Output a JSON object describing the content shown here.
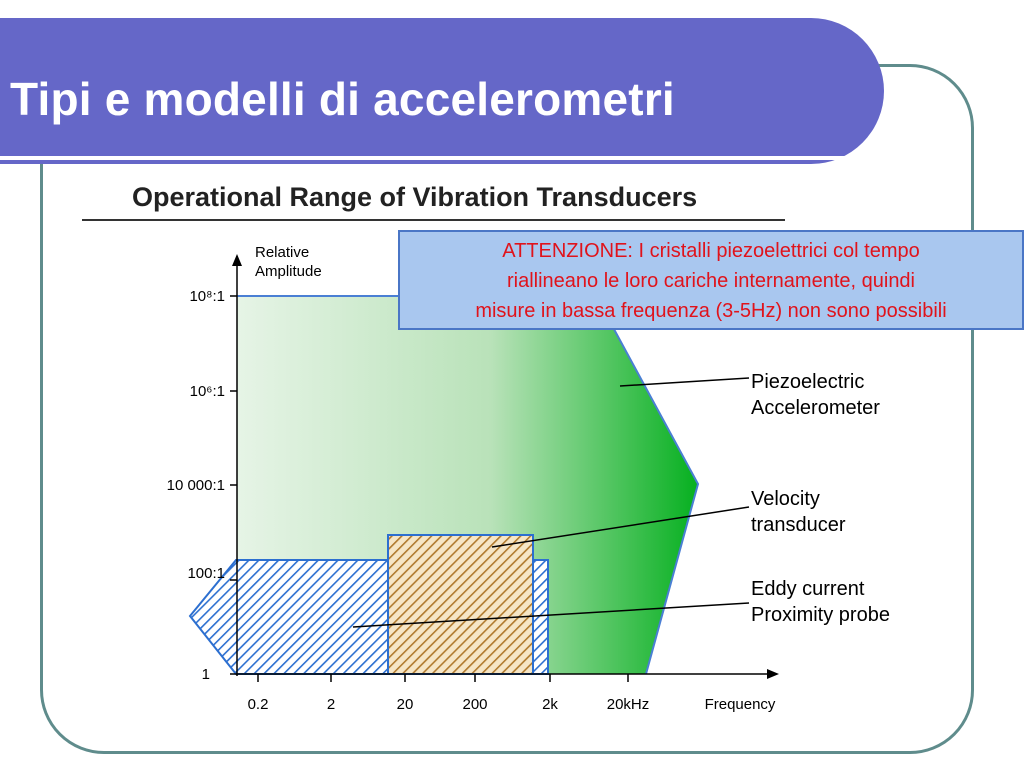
{
  "slide": {
    "title": "Tipi e modelli di accelerometri"
  },
  "figure": {
    "heading": "Operational Range of Vibration Transducers",
    "y_axis_title": [
      "Relative",
      "Amplitude"
    ],
    "y_ticks": [
      "10⁸:1",
      "10⁶:1",
      "10 000:1",
      "100:1",
      "1"
    ],
    "x_ticks": [
      "0.2",
      "2",
      "20",
      "200",
      "2k",
      "20kHz"
    ],
    "x_axis_title": "Frequency",
    "annotations": {
      "piezo": [
        "Piezoelectric",
        "Accelerometer"
      ],
      "velocity": [
        "Velocity",
        "transducer"
      ],
      "eddy": [
        "Eddy current",
        "Proximity probe"
      ]
    },
    "colors": {
      "piezo_start": "#e6f4e6",
      "piezo_end": "#06b020",
      "eddy_hatch": "#2c6fd0",
      "velocity_hatch": "#b07a2e"
    }
  },
  "callout": {
    "lines": [
      "ATTENZIONE: I cristalli piezoelettrici col tempo",
      "riallineano le loro cariche internamente, quindi",
      "misure in bassa frequenza (3-5Hz) non sono possibili"
    ]
  }
}
